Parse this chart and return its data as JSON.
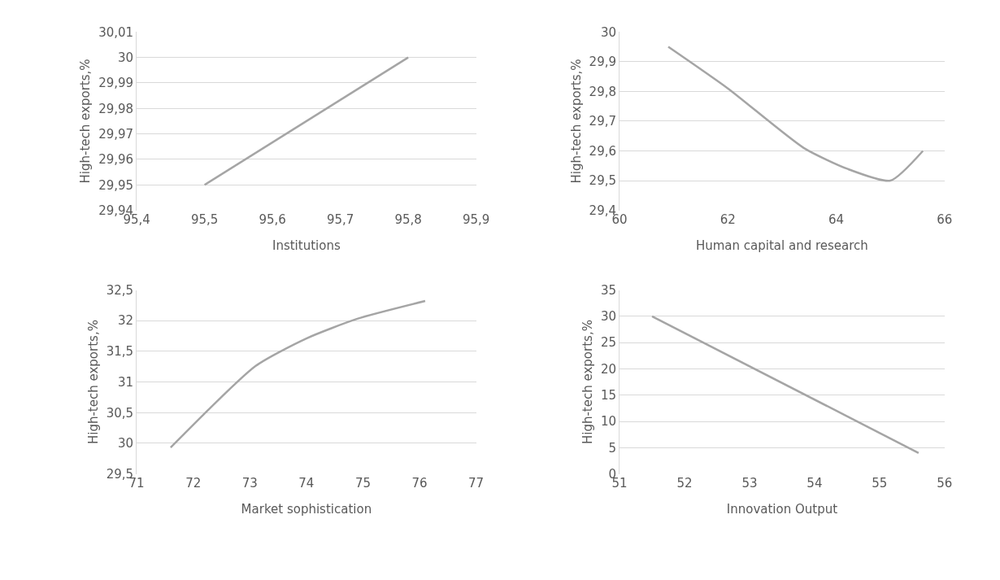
{
  "chart_data": [
    {
      "type": "line",
      "xlabel": "Institutions",
      "ylabel": "High-tech exports,%",
      "x": [
        95.5,
        95.8
      ],
      "values": [
        29.95,
        30.0
      ],
      "color": "#a5a5a5",
      "line_style": "solid",
      "marker": "none",
      "grid": "y",
      "xlim": [
        95.4,
        95.9
      ],
      "xticks": [
        {
          "value": 95.4,
          "label": "95,4"
        },
        {
          "value": 95.5,
          "label": "95,5"
        },
        {
          "value": 95.6,
          "label": "95,6"
        },
        {
          "value": 95.7,
          "label": "95,7"
        },
        {
          "value": 95.8,
          "label": "95,8"
        },
        {
          "value": 95.9,
          "label": "95,9"
        }
      ],
      "ylim": [
        29.94,
        30.01
      ],
      "yticks": [
        {
          "value": 29.94,
          "label": "29,94"
        },
        {
          "value": 29.95,
          "label": "29,95"
        },
        {
          "value": 29.96,
          "label": "29,96"
        },
        {
          "value": 29.97,
          "label": "29,97"
        },
        {
          "value": 29.98,
          "label": "29,98"
        },
        {
          "value": 29.99,
          "label": "29,99"
        },
        {
          "value": 30,
          "label": "30"
        },
        {
          "value": 30.01,
          "label": "30,01"
        }
      ]
    },
    {
      "type": "line",
      "xlabel": "Human capital and research",
      "ylabel": "High-tech exports,%",
      "x": [
        60.9,
        62.0,
        63.4,
        64.2,
        65.0,
        65.6
      ],
      "values": [
        29.95,
        29.81,
        29.61,
        29.54,
        29.5,
        29.6
      ],
      "color": "#a5a5a5",
      "line_style": "solid",
      "marker": "none",
      "grid": "y",
      "xlim": [
        60,
        66
      ],
      "xticks": [
        60,
        62,
        64,
        66
      ],
      "ylim": [
        29.4,
        30
      ],
      "yticks": [
        {
          "value": 29.4,
          "label": "29,4"
        },
        {
          "value": 29.5,
          "label": "29,5"
        },
        {
          "value": 29.6,
          "label": "29,6"
        },
        {
          "value": 29.7,
          "label": "29,7"
        },
        {
          "value": 29.8,
          "label": "29,8"
        },
        {
          "value": 29.9,
          "label": "29,9"
        },
        {
          "value": 30,
          "label": "30"
        }
      ]
    },
    {
      "type": "line",
      "xlabel": "Market sophistication",
      "ylabel": "High-tech exports,%",
      "x": [
        71.6,
        73.1,
        74.0,
        74.9,
        76.1
      ],
      "values": [
        29.93,
        31.26,
        31.71,
        32.03,
        32.32
      ],
      "color": "#a5a5a5",
      "line_style": "solid",
      "marker": "none",
      "grid": "y",
      "xlim": [
        71,
        77
      ],
      "xticks": [
        71,
        72,
        73,
        74,
        75,
        76,
        77
      ],
      "ylim": [
        29.5,
        32.5
      ],
      "yticks": [
        {
          "value": 29.5,
          "label": "29,5"
        },
        {
          "value": 30,
          "label": "30"
        },
        {
          "value": 30.5,
          "label": "30,5"
        },
        {
          "value": 31,
          "label": "31"
        },
        {
          "value": 31.5,
          "label": "31,5"
        },
        {
          "value": 32,
          "label": "32"
        },
        {
          "value": 32.5,
          "label": "32,5"
        }
      ]
    },
    {
      "type": "line",
      "xlabel": "Innovation Output",
      "ylabel": "High-tech exports,%",
      "x": [
        51.5,
        55.6
      ],
      "values": [
        30,
        4
      ],
      "color": "#a5a5a5",
      "line_style": "solid",
      "marker": "none",
      "grid": "y",
      "xlim": [
        51,
        56
      ],
      "xticks": [
        51,
        52,
        53,
        54,
        55,
        56
      ],
      "ylim": [
        0,
        35
      ],
      "yticks": [
        0,
        5,
        10,
        15,
        20,
        25,
        30,
        35
      ]
    }
  ]
}
